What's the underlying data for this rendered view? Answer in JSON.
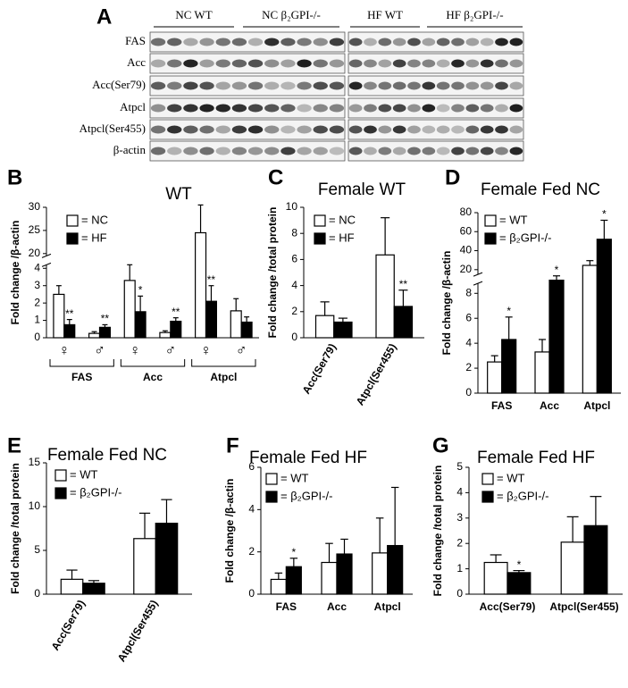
{
  "blot": {
    "panel": "A",
    "groups": [
      "NC WT",
      "NC β₂GPI-/-",
      "HF WT",
      "HF β₂GPI-/-"
    ],
    "rows": [
      "FAS",
      "Acc",
      "Acc(Ser79)",
      "Atpcl",
      "Atpcl(Ser455)",
      "β-actin"
    ]
  },
  "chart_data": [
    {
      "type": "bar",
      "panel": "B",
      "title": "WT",
      "ylabel": "Fold change /β-actin",
      "categories": [
        "♀",
        "♂",
        "♀",
        "♂",
        "♀",
        "♂"
      ],
      "groups": [
        "FAS",
        "Acc",
        "Atpcl"
      ],
      "series": [
        {
          "name": "= NC",
          "color": "#ffffff",
          "values": [
            2.5,
            0.25,
            3.3,
            0.3,
            24.5,
            1.55
          ],
          "errors": [
            0.5,
            0.1,
            1.0,
            0.1,
            6,
            0.7
          ],
          "stars": [
            null,
            null,
            null,
            null,
            null,
            null
          ]
        },
        {
          "name": "= HF",
          "color": "#000000",
          "values": [
            0.75,
            0.6,
            1.5,
            0.95,
            2.1,
            0.9
          ],
          "errors": [
            0.3,
            0.15,
            0.9,
            0.2,
            0.9,
            0.3
          ],
          "stars": [
            "**",
            "**",
            "*",
            "**",
            "**",
            null
          ]
        }
      ],
      "ylim": [
        0,
        30
      ],
      "ybreak": [
        4.2,
        19.5
      ],
      "yticks": [
        0,
        1,
        2,
        3,
        4,
        20,
        25,
        30
      ]
    },
    {
      "type": "bar",
      "panel": "C",
      "title": "Female WT",
      "ylabel": "Fold change /total protein",
      "categories": [
        "Acc(Ser79)",
        "Atpcl(Ser455)"
      ],
      "rotate_labels": true,
      "series": [
        {
          "name": "= NC",
          "color": "#ffffff",
          "values": [
            1.7,
            6.35
          ],
          "errors": [
            1.05,
            2.85
          ],
          "stars": [
            null,
            null
          ]
        },
        {
          "name": "= HF",
          "color": "#000000",
          "values": [
            1.2,
            2.4
          ],
          "errors": [
            0.3,
            1.25
          ],
          "stars": [
            null,
            "**"
          ]
        }
      ],
      "ylim": [
        0,
        10
      ],
      "yticks": [
        0,
        2,
        4,
        6,
        8,
        10
      ]
    },
    {
      "type": "bar",
      "panel": "D",
      "title": "Female Fed NC",
      "ylabel": "Fold change /β-actin",
      "categories": [
        "FAS",
        "Acc",
        "Atpcl"
      ],
      "series": [
        {
          "name": "= WT",
          "color": "#ffffff",
          "values": [
            2.5,
            3.3,
            24.5
          ],
          "errors": [
            0.5,
            1.0,
            5
          ],
          "stars": [
            null,
            null,
            null
          ]
        },
        {
          "name": "= β₂GPI-/-",
          "color": "#000000",
          "values": [
            4.3,
            11,
            52
          ],
          "errors": [
            1.8,
            3,
            20
          ],
          "stars": [
            "*",
            "*",
            "*"
          ]
        }
      ],
      "ylim": [
        0,
        80
      ],
      "ybreak": [
        8.8,
        15
      ],
      "yticks": [
        0,
        2,
        4,
        6,
        8,
        20,
        40,
        60,
        80
      ]
    },
    {
      "type": "bar",
      "panel": "E",
      "title": "Female Fed NC",
      "ylabel": "Fold change /total protein",
      "categories": [
        "Acc(Ser79)",
        "Atpcl(Ser455)"
      ],
      "rotate_labels": true,
      "series": [
        {
          "name": "= WT",
          "color": "#ffffff",
          "values": [
            1.7,
            6.35
          ],
          "errors": [
            1.05,
            2.9
          ],
          "stars": [
            null,
            null
          ]
        },
        {
          "name": "= β₂GPI-/-",
          "color": "#000000",
          "values": [
            1.25,
            8.1
          ],
          "errors": [
            0.3,
            2.7
          ],
          "stars": [
            null,
            null
          ]
        }
      ],
      "ylim": [
        0,
        15
      ],
      "yticks": [
        0,
        5,
        10,
        15
      ]
    },
    {
      "type": "bar",
      "panel": "F",
      "title": "Female Fed HF",
      "ylabel": "Fold change /β-actin",
      "categories": [
        "FAS",
        "Acc",
        "Atpcl"
      ],
      "series": [
        {
          "name": "= WT",
          "color": "#ffffff",
          "values": [
            0.7,
            1.5,
            1.95
          ],
          "errors": [
            0.3,
            0.9,
            1.65
          ],
          "stars": [
            null,
            null,
            null
          ]
        },
        {
          "name": "= β₂GPI-/-",
          "color": "#000000",
          "values": [
            1.3,
            1.9,
            2.3
          ],
          "errors": [
            0.4,
            0.7,
            2.75
          ],
          "stars": [
            "*",
            null,
            null
          ]
        }
      ],
      "ylim": [
        0,
        6
      ],
      "yticks": [
        0,
        2,
        4,
        6
      ]
    },
    {
      "type": "bar",
      "panel": "G",
      "title": "Female Fed HF",
      "ylabel": "Fold change /total protein",
      "categories": [
        "Acc(Ser79)",
        "Atpcl(Ser455)"
      ],
      "series": [
        {
          "name": "= WT",
          "color": "#ffffff",
          "values": [
            1.25,
            2.05
          ],
          "errors": [
            0.3,
            1.0
          ],
          "stars": [
            null,
            null
          ]
        },
        {
          "name": "= β₂GPI-/-",
          "color": "#000000",
          "values": [
            0.85,
            2.7
          ],
          "errors": [
            0.08,
            1.15
          ],
          "stars": [
            "*",
            null
          ]
        }
      ],
      "ylim": [
        0,
        5
      ],
      "yticks": [
        0,
        1,
        2,
        3,
        4,
        5
      ]
    }
  ]
}
